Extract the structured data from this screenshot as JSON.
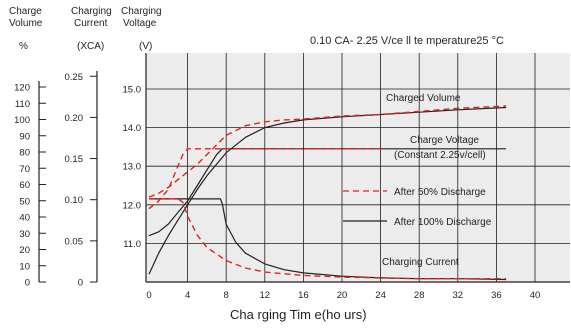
{
  "chart_data": {
    "type": "line",
    "title": "0.10 CA- 2.25 V/ce ll   te mperature25 °C",
    "xlabel": "Cha rging Tim e(ho urs)",
    "axis_headers": {
      "volume": [
        "Charge",
        "Volume"
      ],
      "current": [
        "Charging",
        "Current"
      ],
      "voltage": [
        "Charging",
        "Voltage"
      ]
    },
    "axis_units": {
      "volume": "%",
      "current": "(XCA)",
      "voltage": "(V)"
    },
    "x_ticks": [
      0,
      4,
      8,
      12,
      16,
      20,
      24,
      28,
      32,
      36,
      40
    ],
    "xlim": [
      0,
      46
    ],
    "voltage_axis": {
      "ticks": [
        11.0,
        12.0,
        13.0,
        14.0,
        15.0
      ],
      "tick_labels": [
        "11.0",
        "12.0",
        "13.0",
        "14.0",
        "15.0"
      ],
      "ylim": [
        10.0,
        16.1
      ]
    },
    "current_axis": {
      "ticks": [
        0,
        0.05,
        0.1,
        0.15,
        0.2,
        0.25
      ],
      "tick_labels": [
        "0",
        "0.05",
        "0.10",
        "0.15",
        "0.20",
        "0.25"
      ]
    },
    "volume_axis": {
      "ticks": [
        0,
        10,
        20,
        30,
        40,
        50,
        60,
        70,
        80,
        90,
        100,
        110,
        120
      ],
      "tick_labels": [
        "0",
        "10",
        "20",
        "30",
        "40",
        "50",
        "60",
        "70",
        "80",
        "90",
        "100",
        "110",
        "120"
      ]
    },
    "grid": true,
    "annotations": [
      "Charged Volume",
      "Charge Voltage",
      "(Constant 2.25v/cell)",
      "Charging Current"
    ],
    "legend": [
      {
        "label": "After 50% Discharge",
        "style": "dashed",
        "color": "#e2231a"
      },
      {
        "label": "After 100% Discharge",
        "style": "solid",
        "color": "#231f20"
      }
    ],
    "series": [
      {
        "group": "Charged Volume",
        "legend": "After 100% Discharge",
        "x": [
          0,
          1,
          2,
          3,
          4,
          5,
          6,
          8,
          10,
          12,
          14,
          16,
          20,
          24,
          28,
          32,
          37
        ],
        "values": [
          10.2,
          10.75,
          11.2,
          11.6,
          12.0,
          12.4,
          12.75,
          13.35,
          13.75,
          14.0,
          14.12,
          14.2,
          14.28,
          14.34,
          14.4,
          14.46,
          14.52
        ]
      },
      {
        "group": "Charged Volume",
        "legend": "After 50% Discharge",
        "x": [
          0,
          1,
          2,
          3,
          4,
          5,
          6,
          8,
          10,
          12,
          14,
          16,
          20,
          24,
          28,
          32,
          37
        ],
        "values": [
          12.2,
          12.3,
          12.45,
          12.65,
          12.85,
          13.05,
          13.3,
          13.8,
          14.05,
          14.15,
          14.2,
          14.22,
          14.3,
          14.34,
          14.42,
          14.5,
          14.56
        ]
      },
      {
        "group": "Charge Voltage",
        "legend": "After 100% Discharge",
        "x": [
          0,
          1,
          2,
          3,
          4,
          5,
          6,
          7,
          7.6,
          37
        ],
        "values": [
          11.2,
          11.3,
          11.5,
          11.8,
          12.1,
          12.5,
          12.9,
          13.3,
          13.45,
          13.45
        ]
      },
      {
        "group": "Charge Voltage",
        "legend": "After 50% Discharge",
        "x": [
          0,
          1,
          2,
          2.5,
          3,
          3.5,
          4,
          5,
          7,
          10,
          24
        ],
        "values": [
          11.9,
          12.1,
          12.4,
          12.7,
          13.0,
          13.3,
          13.45,
          13.45,
          13.45,
          13.45,
          13.45
        ]
      },
      {
        "group": "Charging Current",
        "legend": "After 100% Discharge",
        "x": [
          0,
          2,
          4,
          6,
          7.4,
          7.6,
          8,
          9,
          10,
          12,
          14,
          16,
          20,
          24,
          28,
          32,
          37
        ],
        "values": [
          0.101,
          0.101,
          0.101,
          0.101,
          0.101,
          0.095,
          0.07,
          0.048,
          0.035,
          0.022,
          0.015,
          0.011,
          0.007,
          0.005,
          0.004,
          0.004,
          0.003
        ]
      },
      {
        "group": "Charging Current",
        "legend": "After 50% Discharge",
        "x": [
          0,
          1,
          2,
          3,
          3.5,
          4,
          5,
          6,
          8,
          10,
          12,
          16,
          20,
          24,
          28,
          32,
          37
        ],
        "values": [
          0.101,
          0.101,
          0.101,
          0.101,
          0.097,
          0.08,
          0.057,
          0.042,
          0.026,
          0.017,
          0.012,
          0.008,
          0.006,
          0.005,
          0.004,
          0.004,
          0.004
        ]
      }
    ]
  }
}
